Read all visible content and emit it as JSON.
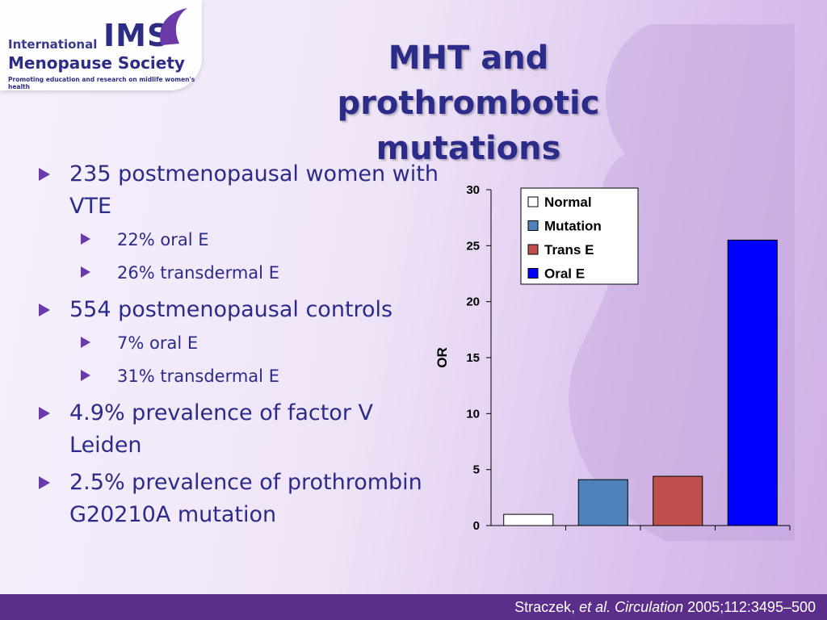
{
  "logo": {
    "line1": "International",
    "brand": "IMS",
    "line2": "Menopause Society",
    "tagline": "Promoting education and research on midlife women's health"
  },
  "title": "MHT and prothrombotic mutations",
  "bullets": [
    {
      "text": "235 postmenopausal women with VTE",
      "sub": [
        "22% oral E",
        "26% transdermal E"
      ]
    },
    {
      "text": "554 postmenopausal controls",
      "sub": [
        "7% oral E",
        "31% transdermal E"
      ]
    },
    {
      "text": "4.9% prevalence of factor V Leiden",
      "sub": []
    },
    {
      "text": "2.5% prevalence of prothrombin G20210A mutation",
      "sub": []
    }
  ],
  "chart_data": {
    "type": "bar",
    "categories": [
      "Normal",
      "Mutation",
      "Trans E",
      "Oral E"
    ],
    "values": [
      1,
      4.1,
      4.4,
      25.5
    ],
    "colors": [
      "#ffffff",
      "#4f81bd",
      "#c0504d",
      "#0000ff"
    ],
    "ylabel": "OR",
    "ylim": [
      0,
      30
    ],
    "yticks": [
      0,
      5,
      10,
      15,
      20,
      25,
      30
    ],
    "grid": false,
    "legend": {
      "position": "top-right",
      "entries": [
        "Normal",
        "Mutation",
        "Trans E",
        "Oral E"
      ]
    }
  },
  "footer": {
    "authors": "Straczek, ",
    "etal": "et al. Circulation",
    "ref": " 2005;112:3495–500"
  },
  "colors": {
    "accent": "#2b2b8a",
    "bullet": "#6b39a8",
    "footer_bg": "#5b2e8c"
  }
}
